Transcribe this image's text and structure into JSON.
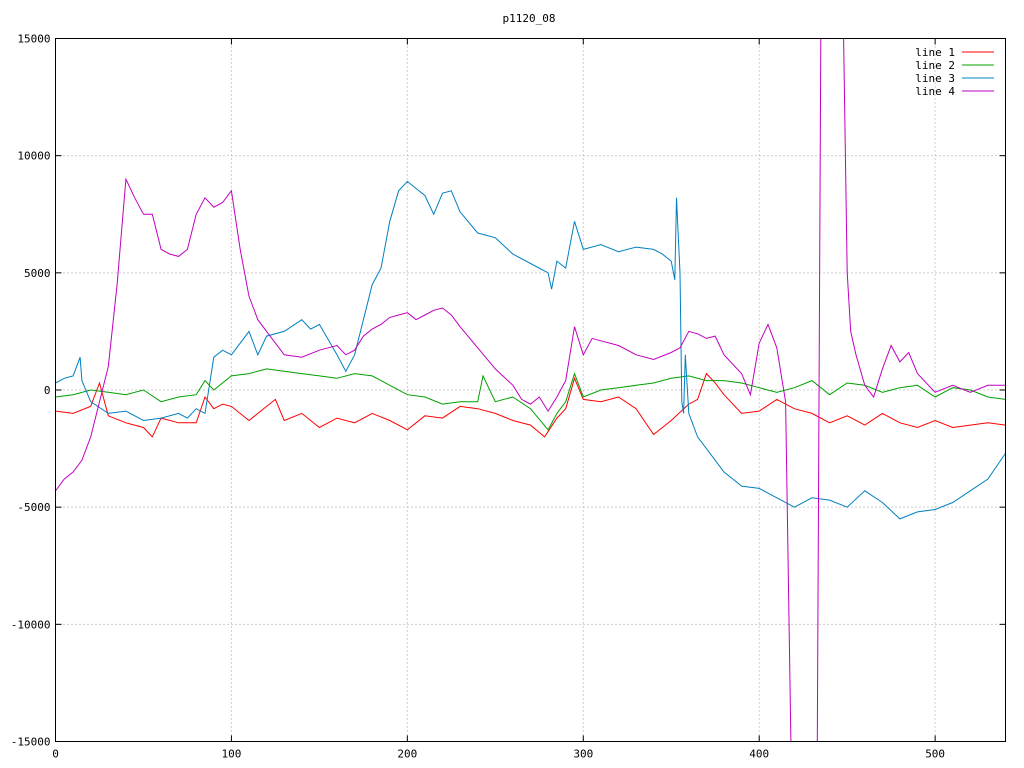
{
  "chart_data": {
    "type": "line",
    "title": "p1120_08",
    "xlabel": "",
    "ylabel": "",
    "xlim": [
      0,
      540
    ],
    "ylim": [
      -15000,
      15000
    ],
    "x_ticks": [
      0,
      100,
      200,
      300,
      400,
      500
    ],
    "y_ticks": [
      -15000,
      -10000,
      -5000,
      0,
      5000,
      10000,
      15000
    ],
    "grid": true,
    "legend_position": "top-right",
    "series": [
      {
        "name": "line 1",
        "color": "#ff0000",
        "x": [
          0,
          10,
          20,
          25,
          30,
          40,
          50,
          55,
          60,
          70,
          80,
          85,
          90,
          95,
          100,
          110,
          120,
          125,
          130,
          140,
          150,
          160,
          170,
          180,
          190,
          200,
          210,
          220,
          230,
          240,
          250,
          260,
          270,
          278,
          285,
          290,
          295,
          300,
          310,
          320,
          330,
          340,
          350,
          360,
          365,
          370,
          375,
          380,
          390,
          400,
          410,
          420,
          430,
          440,
          450,
          460,
          470,
          480,
          490,
          500,
          510,
          520,
          530,
          540
        ],
        "y": [
          -900,
          -1000,
          -700,
          300,
          -1100,
          -1400,
          -1600,
          -2000,
          -1200,
          -1400,
          -1400,
          -300,
          -800,
          -600,
          -700,
          -1300,
          -700,
          -400,
          -1300,
          -1000,
          -1600,
          -1200,
          -1400,
          -1000,
          -1300,
          -1700,
          -1100,
          -1200,
          -700,
          -800,
          -1000,
          -1300,
          -1500,
          -2000,
          -1200,
          -800,
          500,
          -400,
          -500,
          -300,
          -800,
          -1900,
          -1300,
          -600,
          -400,
          700,
          300,
          -200,
          -1000,
          -900,
          -400,
          -800,
          -1000,
          -1400,
          -1100,
          -1500,
          -1000,
          -1400,
          -1600,
          -1300,
          -1600,
          -1500,
          -1400,
          -1500
        ]
      },
      {
        "name": "line 2",
        "color": "#00a000",
        "x": [
          0,
          10,
          20,
          30,
          40,
          50,
          60,
          70,
          80,
          85,
          90,
          100,
          110,
          120,
          130,
          140,
          150,
          160,
          170,
          180,
          190,
          200,
          210,
          220,
          230,
          240,
          243,
          250,
          260,
          270,
          280,
          285,
          290,
          295,
          300,
          310,
          320,
          330,
          340,
          350,
          360,
          370,
          380,
          390,
          400,
          410,
          420,
          430,
          440,
          450,
          460,
          470,
          480,
          490,
          500,
          510,
          520,
          530,
          540
        ],
        "y": [
          -300,
          -200,
          0,
          -100,
          -200,
          0,
          -500,
          -300,
          -200,
          400,
          0,
          600,
          700,
          900,
          800,
          700,
          600,
          500,
          700,
          600,
          200,
          -200,
          -300,
          -600,
          -500,
          -500,
          600,
          -500,
          -300,
          -800,
          -1700,
          -1000,
          -500,
          700,
          -300,
          0,
          100,
          200,
          300,
          500,
          600,
          400,
          400,
          300,
          100,
          -100,
          100,
          400,
          -200,
          300,
          200,
          -100,
          100,
          200,
          -300,
          100,
          0,
          -300,
          -400
        ]
      },
      {
        "name": "line 3",
        "color": "#0080c0",
        "x": [
          0,
          5,
          10,
          14,
          15,
          20,
          30,
          40,
          50,
          60,
          70,
          75,
          80,
          85,
          90,
          95,
          100,
          110,
          115,
          120,
          130,
          140,
          145,
          150,
          160,
          165,
          170,
          175,
          180,
          185,
          190,
          195,
          200,
          205,
          210,
          215,
          220,
          225,
          230,
          240,
          250,
          260,
          270,
          280,
          282,
          285,
          290,
          295,
          300,
          310,
          320,
          330,
          340,
          345,
          350,
          352,
          353,
          355,
          356,
          357,
          358,
          360,
          365,
          370,
          375,
          380,
          385,
          390,
          400,
          410,
          420,
          430,
          440,
          450,
          460,
          470,
          480,
          490,
          500,
          510,
          520,
          530,
          540
        ],
        "y": [
          300,
          500,
          600,
          1400,
          400,
          -500,
          -1000,
          -900,
          -1300,
          -1200,
          -1000,
          -1200,
          -800,
          -1000,
          1400,
          1700,
          1500,
          2500,
          1500,
          2300,
          2500,
          3000,
          2600,
          2800,
          1500,
          800,
          1500,
          3000,
          4500,
          5200,
          7200,
          8500,
          8900,
          8600,
          8300,
          7500,
          8400,
          8500,
          7600,
          6700,
          6500,
          5800,
          5400,
          5000,
          4300,
          5500,
          5200,
          7200,
          6000,
          6200,
          5900,
          6100,
          6000,
          5800,
          5500,
          4700,
          8200,
          5000,
          -500,
          -1000,
          1500,
          -1000,
          -2000,
          -2500,
          -3000,
          -3500,
          -3800,
          -4100,
          -4200,
          -4600,
          -5000,
          -4600,
          -4700,
          -5000,
          -4300,
          -4800,
          -5500,
          -5200,
          -5100,
          -4800,
          -4300,
          -3800,
          -2700
        ]
      },
      {
        "name": "line 4",
        "color": "#c000c0",
        "x": [
          0,
          5,
          10,
          15,
          20,
          25,
          30,
          35,
          40,
          45,
          50,
          55,
          60,
          65,
          70,
          75,
          80,
          85,
          90,
          95,
          100,
          105,
          110,
          115,
          120,
          125,
          130,
          140,
          150,
          155,
          160,
          165,
          170,
          175,
          180,
          185,
          190,
          195,
          200,
          205,
          210,
          215,
          220,
          225,
          230,
          240,
          250,
          260,
          265,
          270,
          275,
          280,
          285,
          290,
          295,
          300,
          305,
          310,
          320,
          330,
          340,
          350,
          355,
          360,
          365,
          370,
          375,
          380,
          390,
          395,
          400,
          405,
          410,
          415,
          418,
          420,
          425,
          430,
          433,
          435,
          440,
          445,
          448,
          450,
          452,
          455,
          460,
          465,
          470,
          475,
          480,
          485,
          490,
          500,
          510,
          520,
          530,
          540
        ],
        "y": [
          -4300,
          -3800,
          -3500,
          -3000,
          -2000,
          -500,
          1000,
          4500,
          9000,
          8200,
          7500,
          7500,
          6000,
          5800,
          5700,
          6000,
          7500,
          8200,
          7800,
          8000,
          8500,
          6000,
          4000,
          3000,
          2500,
          2000,
          1500,
          1400,
          1700,
          1800,
          1900,
          1500,
          1700,
          2300,
          2600,
          2800,
          3100,
          3200,
          3300,
          3000,
          3200,
          3400,
          3500,
          3200,
          2700,
          1800,
          900,
          200,
          -400,
          -600,
          -300,
          -900,
          -300,
          400,
          2700,
          1500,
          2200,
          2100,
          1900,
          1500,
          1300,
          1600,
          1800,
          2500,
          2400,
          2200,
          2300,
          1500,
          700,
          -200,
          2000,
          2800,
          1800,
          -500,
          -15000,
          -15000,
          -15000,
          -15000,
          -15000,
          15000,
          15000,
          15000,
          15000,
          5000,
          2500,
          1500,
          200,
          -300,
          900,
          1900,
          1200,
          1600,
          700,
          -100,
          200,
          -100,
          200,
          200
        ]
      }
    ]
  }
}
